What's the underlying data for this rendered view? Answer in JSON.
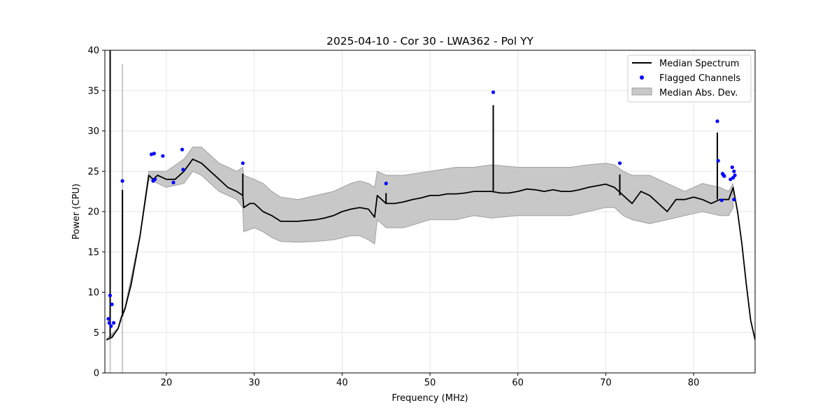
{
  "chart_data": {
    "type": "line",
    "title": "2025-04-10 - Cor 30 - LWA362 - Pol YY",
    "xlabel": "Frequency (MHz)",
    "ylabel": "Power (CPU)",
    "xlim": [
      13,
      87
    ],
    "ylim": [
      0,
      40
    ],
    "xticks": [
      20,
      30,
      40,
      50,
      60,
      70,
      80
    ],
    "yticks": [
      0,
      5,
      10,
      15,
      20,
      25,
      30,
      35,
      40
    ],
    "xtick_labels": [
      "20",
      "30",
      "40",
      "50",
      "60",
      "70",
      "80"
    ],
    "ytick_labels": [
      "0",
      "5",
      "10",
      "15",
      "20",
      "25",
      "30",
      "35",
      "40"
    ],
    "grid": true,
    "legend": {
      "placement": "top-right",
      "entries": [
        "Median Spectrum",
        "Flagged Channels",
        "Median Abs. Dev."
      ]
    },
    "colors": {
      "median": "#000000",
      "flagged": "#0000ff",
      "mad_fill": "#c8c8c8",
      "mad_edge": "#a0a0a0",
      "grid": "#e6e6e6"
    },
    "series": [
      {
        "name": "Median Spectrum",
        "x": [
          13.2,
          13.8,
          14.5,
          14.9,
          15.3,
          16.0,
          17.0,
          18.0,
          18.5,
          19.0,
          20.0,
          21.0,
          22.0,
          23.0,
          24.0,
          25.0,
          26.0,
          27.0,
          28.0,
          28.7,
          28.8,
          29.5,
          30.0,
          31.0,
          32.0,
          33.0,
          34.0,
          35.0,
          36.0,
          37.0,
          38.0,
          39.0,
          40.0,
          41.0,
          42.0,
          43.0,
          43.7,
          44.0,
          45.0,
          46.0,
          47.0,
          48.0,
          49.0,
          50.0,
          51.0,
          52.0,
          53.0,
          54.0,
          55.0,
          56.0,
          57.0,
          58.0,
          59.0,
          60.0,
          61.0,
          62.0,
          63.0,
          64.0,
          65.0,
          66.0,
          67.0,
          68.0,
          69.0,
          70.0,
          71.0,
          72.0,
          73.0,
          74.0,
          75.0,
          76.0,
          77.0,
          78.0,
          79.0,
          80.0,
          81.0,
          82.0,
          83.0,
          84.0,
          84.5,
          85.0,
          85.5,
          86.0,
          86.5,
          87.0
        ],
        "y": [
          4.1,
          4.4,
          5.5,
          7.0,
          8.0,
          11.0,
          17.0,
          24.5,
          24.0,
          24.5,
          24.0,
          24.0,
          25.0,
          26.5,
          26.0,
          25.0,
          24.0,
          23.0,
          22.5,
          22.0,
          20.5,
          21.0,
          21.0,
          20.0,
          19.5,
          18.8,
          18.8,
          18.8,
          18.9,
          19.0,
          19.2,
          19.5,
          20.0,
          20.3,
          20.5,
          20.3,
          19.3,
          22.0,
          21.0,
          21.0,
          21.2,
          21.5,
          21.7,
          22.0,
          22.0,
          22.2,
          22.2,
          22.3,
          22.5,
          22.5,
          22.5,
          22.3,
          22.3,
          22.5,
          22.8,
          22.7,
          22.5,
          22.7,
          22.5,
          22.5,
          22.7,
          23.0,
          23.2,
          23.4,
          23.0,
          22.0,
          21.0,
          22.5,
          22.0,
          21.0,
          20.0,
          21.5,
          21.5,
          21.8,
          21.5,
          21.0,
          21.5,
          21.5,
          23.0,
          20.0,
          16.0,
          11.0,
          6.5,
          4.1
        ]
      },
      {
        "name": "Median Abs. Dev.",
        "x": [
          13.2,
          14.5,
          15.3,
          17.0,
          18.0,
          20.0,
          22.0,
          23.0,
          24.0,
          25.0,
          26.0,
          27.0,
          28.0,
          28.7,
          28.8,
          30.0,
          31.0,
          32.0,
          33.0,
          35.0,
          37.0,
          39.0,
          41.0,
          42.0,
          43.0,
          43.7,
          44.0,
          45.0,
          47.0,
          50.0,
          53.0,
          55.0,
          57.0,
          60.0,
          63.0,
          66.0,
          68.0,
          70.0,
          71.0,
          72.0,
          73.0,
          75.0,
          77.0,
          79.0,
          81.0,
          83.0,
          84.0,
          84.5
        ],
        "upper": [
          4.2,
          5.6,
          8.2,
          17.2,
          25.0,
          25.0,
          26.5,
          28.0,
          28.0,
          27.0,
          26.0,
          25.5,
          25.0,
          25.5,
          24.5,
          24.0,
          23.5,
          22.5,
          21.8,
          21.5,
          22.0,
          22.5,
          23.5,
          23.8,
          23.5,
          23.0,
          25.0,
          24.5,
          24.5,
          25.0,
          25.5,
          25.5,
          25.8,
          25.5,
          25.5,
          25.5,
          25.8,
          26.0,
          25.8,
          25.0,
          24.5,
          24.5,
          23.5,
          22.5,
          23.5,
          23.0,
          22.5,
          23.5
        ],
        "lower": [
          4.0,
          5.4,
          7.8,
          16.8,
          24.0,
          23.0,
          23.5,
          25.0,
          24.5,
          23.5,
          22.5,
          22.0,
          21.5,
          20.5,
          17.5,
          18.0,
          17.5,
          16.8,
          16.3,
          16.2,
          16.3,
          16.5,
          17.0,
          17.0,
          16.5,
          16.0,
          19.0,
          18.0,
          18.0,
          19.0,
          19.0,
          19.5,
          19.2,
          19.5,
          19.5,
          19.5,
          20.0,
          20.5,
          20.5,
          19.5,
          19.0,
          18.5,
          19.0,
          19.5,
          20.0,
          19.5,
          19.5,
          20.5
        ]
      },
      {
        "name": "Flagged Channels",
        "x": [
          13.4,
          13.5,
          13.6,
          13.7,
          13.8,
          14.0,
          15.0,
          18.3,
          18.5,
          18.6,
          18.7,
          19.6,
          20.8,
          21.8,
          21.9,
          28.7,
          45.0,
          57.2,
          71.6,
          82.7,
          82.8,
          83.2,
          83.3,
          83.4,
          83.5,
          84.2,
          84.4,
          84.5,
          84.6,
          84.6,
          84.7
        ],
        "y": [
          6.7,
          6.2,
          9.6,
          5.8,
          8.5,
          6.2,
          23.8,
          27.1,
          23.8,
          27.2,
          24.0,
          26.9,
          23.6,
          27.7,
          25.2,
          26.0,
          23.5,
          34.8,
          26.0,
          31.2,
          26.3,
          21.4,
          24.7,
          24.5,
          24.4,
          24.0,
          25.5,
          24.2,
          25.0,
          21.5,
          24.5
        ]
      }
    ],
    "spikes": [
      {
        "x": 13.6,
        "y": 40.0
      },
      {
        "x": 15.0,
        "y": 22.7
      },
      {
        "x": 28.7,
        "y": 24.7
      },
      {
        "x": 45.0,
        "y": 22.3
      },
      {
        "x": 57.2,
        "y": 33.2
      },
      {
        "x": 71.6,
        "y": 24.6
      },
      {
        "x": 82.7,
        "y": 29.8
      }
    ],
    "mad_spikes": [
      {
        "x": 15.0,
        "y": 38.3
      },
      {
        "x": 13.6,
        "y": 11.8
      }
    ]
  }
}
